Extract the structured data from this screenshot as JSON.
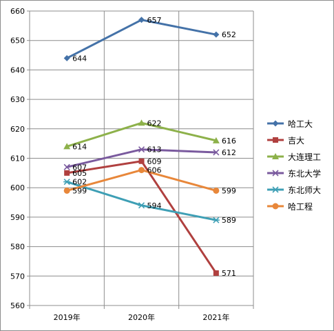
{
  "chart_data": {
    "type": "line",
    "title": "",
    "xlabel": "",
    "ylabel": "",
    "categories": [
      "2019年",
      "2020年",
      "2021年"
    ],
    "ylim": [
      560,
      660
    ],
    "ytick_step": 10,
    "grid": true,
    "legend_position": "right",
    "series": [
      {
        "name": "哈工大",
        "values": [
          644,
          657,
          652
        ],
        "color": "#4472a8",
        "marker": "diamond"
      },
      {
        "name": "吉大",
        "values": [
          605,
          609,
          571
        ],
        "color": "#b0403f",
        "marker": "square"
      },
      {
        "name": "大连理工",
        "values": [
          614,
          622,
          616
        ],
        "color": "#8db14a",
        "marker": "triangle"
      },
      {
        "name": "东北大学",
        "values": [
          607,
          613,
          612
        ],
        "color": "#7a5a9e",
        "marker": "x"
      },
      {
        "name": "东北师大",
        "values": [
          602,
          594,
          589
        ],
        "color": "#3e9fb5",
        "marker": "star"
      },
      {
        "name": "哈工程",
        "values": [
          599,
          606,
          599
        ],
        "color": "#e8873a",
        "marker": "circle"
      }
    ]
  }
}
